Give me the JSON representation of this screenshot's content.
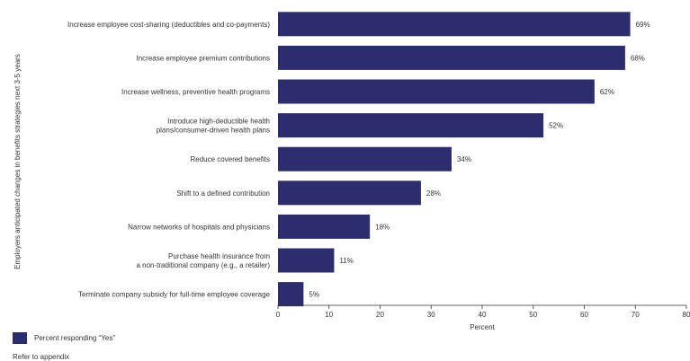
{
  "chart_data": {
    "type": "bar",
    "orientation": "horizontal",
    "categories": [
      [
        "Increase employee cost-sharing (deductibles and co-payments)"
      ],
      [
        "Increase employee premium contributions"
      ],
      [
        "Increase wellness, preventive health programs"
      ],
      [
        "Introduce high-deductible health",
        "plans/consumer-driven health plans"
      ],
      [
        "Reduce covered benefits"
      ],
      [
        "Shift to a defined contribution"
      ],
      [
        "Narrow networks of hospitals and physicians"
      ],
      [
        "Purchase health insurance from",
        "a non-traditional company (e.g., a retailer)"
      ],
      [
        "Terminate company subsidy for full-time employee coverage"
      ]
    ],
    "series": [
      {
        "name": "Percent responding “Yes”",
        "values": [
          69,
          68,
          62,
          52,
          34,
          28,
          18,
          11,
          5
        ],
        "labels": [
          "69%",
          "68%",
          "62%",
          "52%",
          "34%",
          "28%",
          "18%",
          "11%",
          "5%"
        ]
      }
    ],
    "xlabel": "Percent",
    "ylabel": "Employers anticipated changes in benefits strategies next 3-5 years",
    "xlim": [
      0,
      80
    ],
    "xticks": [
      0,
      10,
      20,
      30,
      40,
      50,
      60,
      70,
      80
    ],
    "grid": false,
    "legend_position": "bottom-left",
    "bar_color": "#2b2d6e"
  },
  "footnote": "Refer to appendix"
}
